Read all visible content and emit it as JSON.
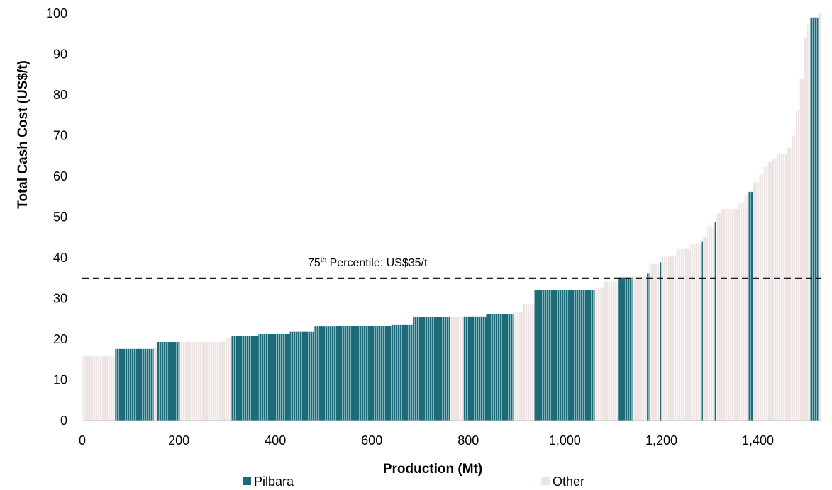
{
  "chart_data": {
    "type": "bar",
    "subtype": "cost-curve",
    "xlabel": "Production (Mt)",
    "ylabel": "Total Cash Cost  (US$/t)",
    "xlim": [
      0,
      1530
    ],
    "ylim": [
      0,
      100
    ],
    "x_ticks": [
      0,
      200,
      400,
      600,
      800,
      1000,
      1200,
      1400
    ],
    "x_tick_labels": [
      "0",
      "200",
      "400",
      "600",
      "800",
      "1,000",
      "1,200",
      "1,400"
    ],
    "y_ticks": [
      0,
      10,
      20,
      30,
      40,
      50,
      60,
      70,
      80,
      90,
      100
    ],
    "y_tick_labels": [
      "0",
      "10",
      "20",
      "30",
      "40",
      "50",
      "60",
      "70",
      "80",
      "90",
      "100"
    ],
    "grid": false,
    "legend_position": "bottom",
    "series": [
      {
        "name": "Pilbara",
        "color": "#1d6b78"
      },
      {
        "name": "Other",
        "color": "#ede4e3"
      }
    ],
    "reference_line": {
      "value": 35,
      "style": "dashed",
      "label_main": "75",
      "label_sup": "th",
      "label_rest": " Percentile: US$35/t"
    },
    "segments": [
      {
        "x0": 0,
        "x1": 68,
        "value": 15.8,
        "series": "Other"
      },
      {
        "x0": 68,
        "x1": 148,
        "value": 17.6,
        "series": "Pilbara"
      },
      {
        "x0": 148,
        "x1": 155,
        "value": 17.8,
        "series": "Other"
      },
      {
        "x0": 155,
        "x1": 202,
        "value": 19.3,
        "series": "Pilbara"
      },
      {
        "x0": 202,
        "x1": 297,
        "value": 19.3,
        "series": "Other"
      },
      {
        "x0": 297,
        "x1": 308,
        "value": 20.2,
        "series": "Other"
      },
      {
        "x0": 308,
        "x1": 365,
        "value": 20.8,
        "series": "Pilbara"
      },
      {
        "x0": 365,
        "x1": 430,
        "value": 21.3,
        "series": "Pilbara"
      },
      {
        "x0": 430,
        "x1": 480,
        "value": 21.8,
        "series": "Pilbara"
      },
      {
        "x0": 480,
        "x1": 525,
        "value": 23.1,
        "series": "Pilbara"
      },
      {
        "x0": 525,
        "x1": 640,
        "value": 23.3,
        "series": "Pilbara"
      },
      {
        "x0": 640,
        "x1": 685,
        "value": 23.5,
        "series": "Pilbara"
      },
      {
        "x0": 685,
        "x1": 763,
        "value": 25.5,
        "series": "Pilbara"
      },
      {
        "x0": 763,
        "x1": 790,
        "value": 25.5,
        "series": "Other"
      },
      {
        "x0": 790,
        "x1": 837,
        "value": 25.6,
        "series": "Pilbara"
      },
      {
        "x0": 837,
        "x1": 893,
        "value": 26.2,
        "series": "Pilbara"
      },
      {
        "x0": 893,
        "x1": 912,
        "value": 26.8,
        "series": "Other"
      },
      {
        "x0": 912,
        "x1": 937,
        "value": 28.5,
        "series": "Other"
      },
      {
        "x0": 937,
        "x1": 1062,
        "value": 32,
        "series": "Pilbara"
      },
      {
        "x0": 1062,
        "x1": 1080,
        "value": 32.5,
        "series": "Other"
      },
      {
        "x0": 1080,
        "x1": 1110,
        "value": 34.2,
        "series": "Other"
      },
      {
        "x0": 1110,
        "x1": 1140,
        "value": 35.2,
        "series": "Pilbara"
      },
      {
        "x0": 1140,
        "x1": 1170,
        "value": 35.4,
        "series": "Other"
      },
      {
        "x0": 1170,
        "x1": 1175,
        "value": 36.1,
        "series": "Pilbara"
      },
      {
        "x0": 1175,
        "x1": 1197,
        "value": 38.5,
        "series": "Other"
      },
      {
        "x0": 1197,
        "x1": 1200,
        "value": 38.9,
        "series": "Pilbara"
      },
      {
        "x0": 1200,
        "x1": 1230,
        "value": 40.3,
        "series": "Other"
      },
      {
        "x0": 1230,
        "x1": 1260,
        "value": 42.3,
        "series": "Other"
      },
      {
        "x0": 1260,
        "x1": 1283,
        "value": 43.5,
        "series": "Other"
      },
      {
        "x0": 1283,
        "x1": 1286,
        "value": 43.9,
        "series": "Pilbara"
      },
      {
        "x0": 1286,
        "x1": 1295,
        "value": 45.2,
        "series": "Other"
      },
      {
        "x0": 1295,
        "x1": 1310,
        "value": 47.5,
        "series": "Other"
      },
      {
        "x0": 1310,
        "x1": 1314,
        "value": 48.7,
        "series": "Pilbara"
      },
      {
        "x0": 1314,
        "x1": 1325,
        "value": 51,
        "series": "Other"
      },
      {
        "x0": 1325,
        "x1": 1360,
        "value": 52,
        "series": "Other"
      },
      {
        "x0": 1360,
        "x1": 1372,
        "value": 53.6,
        "series": "Other"
      },
      {
        "x0": 1372,
        "x1": 1380,
        "value": 55.5,
        "series": "Other"
      },
      {
        "x0": 1380,
        "x1": 1390,
        "value": 56.2,
        "series": "Pilbara"
      },
      {
        "x0": 1390,
        "x1": 1402,
        "value": 58.5,
        "series": "Other"
      },
      {
        "x0": 1402,
        "x1": 1412,
        "value": 60.5,
        "series": "Other"
      },
      {
        "x0": 1412,
        "x1": 1420,
        "value": 62.5,
        "series": "Other"
      },
      {
        "x0": 1420,
        "x1": 1430,
        "value": 63.5,
        "series": "Other"
      },
      {
        "x0": 1430,
        "x1": 1440,
        "value": 64.4,
        "series": "Other"
      },
      {
        "x0": 1440,
        "x1": 1460,
        "value": 65.4,
        "series": "Other"
      },
      {
        "x0": 1460,
        "x1": 1470,
        "value": 67,
        "series": "Other"
      },
      {
        "x0": 1470,
        "x1": 1478,
        "value": 70,
        "series": "Other"
      },
      {
        "x0": 1478,
        "x1": 1485,
        "value": 76,
        "series": "Other"
      },
      {
        "x0": 1485,
        "x1": 1495,
        "value": 84,
        "series": "Other"
      },
      {
        "x0": 1495,
        "x1": 1502,
        "value": 94,
        "series": "Other"
      },
      {
        "x0": 1502,
        "x1": 1508,
        "value": 97,
        "series": "Other"
      },
      {
        "x0": 1508,
        "x1": 1525,
        "value": 99,
        "series": "Pilbara"
      },
      {
        "x0": 1525,
        "x1": 1530,
        "value": 100,
        "series": "Other"
      }
    ]
  }
}
